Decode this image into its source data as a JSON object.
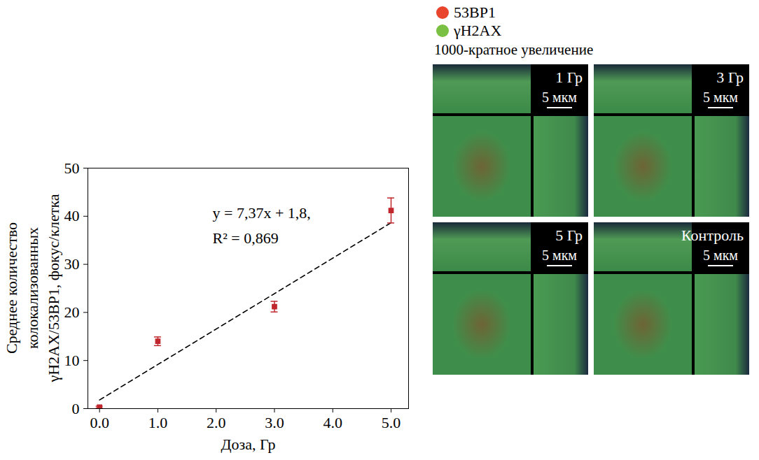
{
  "chart_data": {
    "type": "scatter",
    "x_label": "Доза, Гр",
    "y_label": [
      "Среднее количество",
      "колокализованных",
      "γH2AX/53BP1, фокус/клетка"
    ],
    "x": [
      0,
      1,
      3,
      5
    ],
    "values": [
      0.3,
      14,
      21.2,
      41.2
    ],
    "errors": [
      0.2,
      0.9,
      1.1,
      2.6
    ],
    "color": "#c0272d",
    "marker": "square",
    "xlim": [
      -0.2,
      5.3
    ],
    "ylim": [
      0,
      50
    ],
    "xticks": [
      0,
      1,
      2,
      3,
      4,
      5
    ],
    "yticks": [
      0,
      10,
      20,
      30,
      40,
      50
    ],
    "trend": {
      "x": [
        0,
        5
      ],
      "values": [
        1.8,
        38.65
      ],
      "color": "#000000",
      "line_style": "dashed"
    },
    "annotations": [
      "y = 7,37x + 1,8,",
      "R² = 0,869"
    ]
  },
  "images": {
    "legend": [
      {
        "label": "53BP1",
        "color": "#e8452c"
      },
      {
        "label": "γH2AX",
        "color": "#7ac143"
      }
    ],
    "magnification": "1000-кратное увеличение",
    "panels": [
      {
        "label": "1 Гр",
        "scale_bar": "5 мкм"
      },
      {
        "label": "3 Гр",
        "scale_bar": "5 мкм"
      },
      {
        "label": "5 Гр",
        "scale_bar": "5 мкм"
      },
      {
        "label": "Контроль",
        "scale_bar": "5 мкм"
      }
    ]
  }
}
